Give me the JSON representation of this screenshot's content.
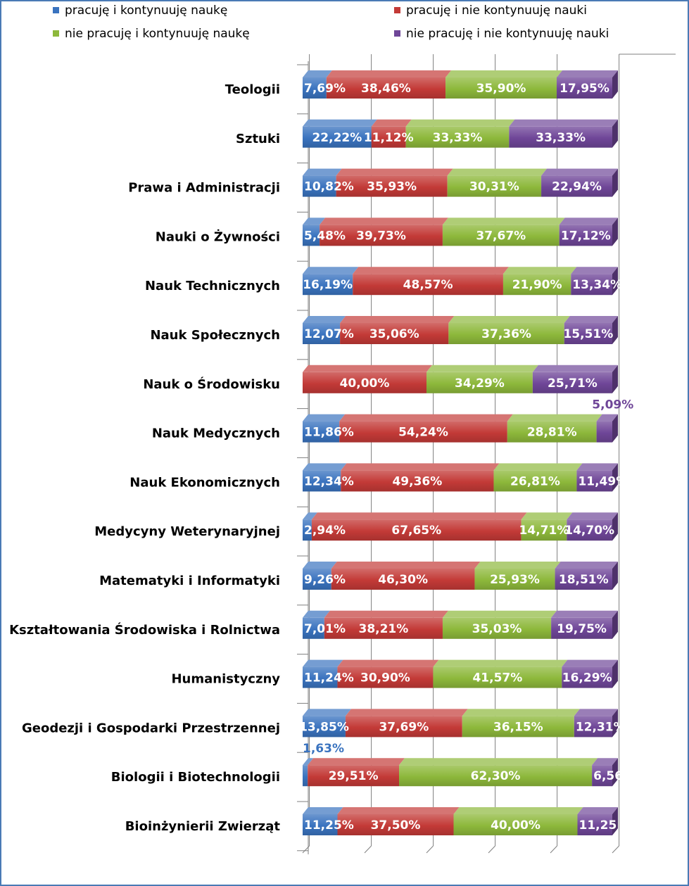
{
  "chart_data": {
    "type": "bar",
    "orientation": "horizontal",
    "stacked": true,
    "percent_stacked": true,
    "legend_position": "top",
    "grid": true,
    "title": "",
    "xlabel": "",
    "ylabel": "",
    "xlim": [
      0,
      100
    ],
    "categories": [
      "Teologii",
      "Sztuki",
      "Prawa i Administracji",
      "Nauki o Żywności",
      "Nauk Technicznych",
      "Nauk Społecznych",
      "Nauk o Środowisku",
      "Nauk Medycznych",
      "Nauk Ekonomicznych",
      "Medycyny Weterynaryjnej",
      "Matematyki i Informatyki",
      "Kształtowania Środowiska i Rolnictwa",
      "Humanistyczny",
      "Geodezji i Gospodarki Przestrzennej",
      "Biologii i Biotechnologii",
      "Bioinżynierii Zwierząt"
    ],
    "series": [
      {
        "name": "pracuję i kontynuuję naukę",
        "color": "#3a73bf",
        "values": [
          7.69,
          22.22,
          10.82,
          5.48,
          16.19,
          12.07,
          0,
          11.86,
          12.34,
          2.94,
          9.26,
          7.01,
          11.24,
          13.85,
          1.63,
          11.25
        ],
        "labels": [
          "7,69%",
          "22,22%",
          "10,82%",
          "5,48%",
          "16,19%",
          "12,07%",
          "",
          "11,86%",
          "12,34%",
          "2,94%",
          "9,26%",
          "7,01%",
          "11,24%",
          "13,85%",
          "1,63%",
          "11,25%"
        ]
      },
      {
        "name": "pracuję i nie kontynuuję nauki",
        "color": "#c33a37",
        "values": [
          38.46,
          11.12,
          35.93,
          39.73,
          48.57,
          35.06,
          40.0,
          54.24,
          49.36,
          67.65,
          46.3,
          38.21,
          30.9,
          37.69,
          29.51,
          37.5
        ],
        "labels": [
          "38,46%",
          "11,12%",
          "35,93%",
          "39,73%",
          "48,57%",
          "35,06%",
          "40,00%",
          "54,24%",
          "49,36%",
          "67,65%",
          "46,30%",
          "38,21%",
          "30,90%",
          "37,69%",
          "29,51%",
          "37,50%"
        ]
      },
      {
        "name": "nie pracuję i kontynuuję naukę",
        "color": "#8db83b",
        "values": [
          35.9,
          33.33,
          30.31,
          37.67,
          21.9,
          37.36,
          34.29,
          28.81,
          26.81,
          14.71,
          25.93,
          35.03,
          41.57,
          36.15,
          62.3,
          40.0
        ],
        "labels": [
          "35,90%",
          "33,33%",
          "30,31%",
          "37,67%",
          "21,90%",
          "37,36%",
          "34,29%",
          "28,81%",
          "26,81%",
          "14,71%",
          "25,93%",
          "35,03%",
          "41,57%",
          "36,15%",
          "62,30%",
          "40,00%"
        ]
      },
      {
        "name": "nie pracuję i nie kontynuuję nauki",
        "color": "#6f4698",
        "values": [
          17.95,
          33.33,
          22.94,
          17.12,
          13.34,
          15.51,
          25.71,
          5.09,
          11.49,
          14.7,
          18.51,
          19.75,
          16.29,
          12.31,
          6.56,
          11.25
        ],
        "labels": [
          "17,95%",
          "33,33%",
          "22,94%",
          "17,12%",
          "13,34%",
          "15,51%",
          "25,71%",
          "5,09%",
          "11,49%",
          "14,70%",
          "18,51%",
          "19,75%",
          "16,29%",
          "12,31%",
          "6,56",
          "11,25"
        ]
      }
    ],
    "outside_labels": [
      {
        "category_index": 7,
        "series_index": 3,
        "position": "above"
      },
      {
        "category_index": 14,
        "series_index": 0,
        "position": "above"
      }
    ]
  }
}
